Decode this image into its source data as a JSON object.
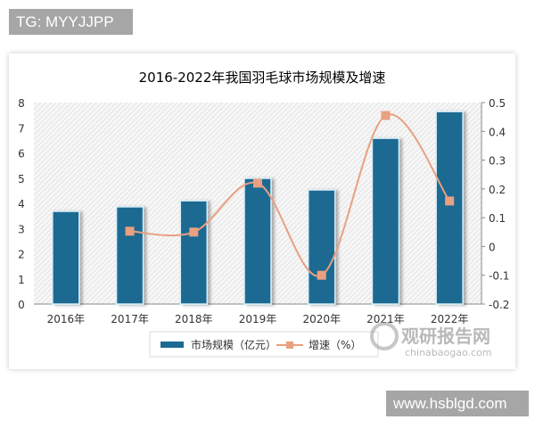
{
  "watermarks": {
    "top_left": "TG: MYYJJPP",
    "bottom_right": "www.hsblgd.com",
    "brand_cn": "观研报告网",
    "brand_en": "chinabaogao.com"
  },
  "colors": {
    "bar": "#1b6a92",
    "bar_border": "#d8eef7",
    "line": "#e8a080",
    "marker": "#e8a080",
    "title": "#2b5a6a",
    "tag_bg": "#a6a6a6"
  },
  "chart_data": {
    "type": "bar",
    "title": "2016-2022年我国羽毛球市场规模及增速",
    "categories": [
      "2016年",
      "2017年",
      "2018年",
      "2019年",
      "2020年",
      "2021年",
      "2022年"
    ],
    "series": [
      {
        "name": "市场规模（亿元）",
        "type": "bar",
        "axis": "left",
        "values": [
          3.68,
          3.86,
          4.1,
          4.99,
          4.53,
          6.58,
          7.64
        ]
      },
      {
        "name": "增速（%）",
        "type": "line",
        "axis": "right",
        "smooth": true,
        "values": [
          null,
          0.053,
          0.05,
          0.22,
          -0.1,
          0.455,
          0.158
        ]
      }
    ],
    "xlabel": "",
    "ylabel": "",
    "ylim": [
      0,
      8
    ],
    "yticks": [
      "0",
      "1",
      "2",
      "3",
      "4",
      "5",
      "6",
      "7",
      "8"
    ],
    "y2lim": [
      -0.2,
      0.5
    ],
    "y2ticks": [
      "-0.2",
      "-0.1",
      "0",
      "0.1",
      "0.2",
      "0.3",
      "0.4",
      "0.5"
    ],
    "grid": false,
    "background": "diagonal hatch",
    "legend": {
      "position": "bottom",
      "entries": [
        "市场规模（亿元）",
        "增速（%）"
      ]
    }
  }
}
